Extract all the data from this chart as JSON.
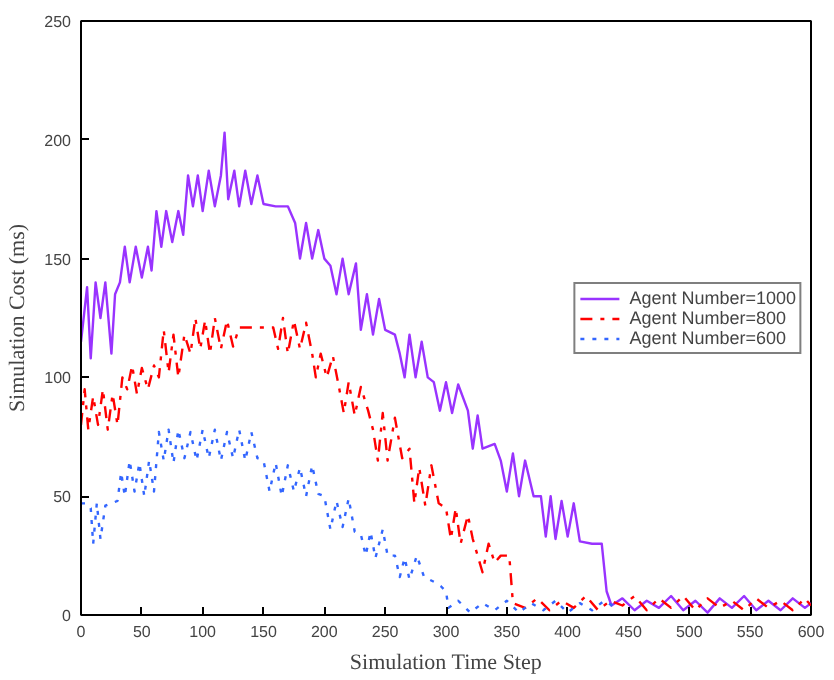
{
  "chart_data": {
    "type": "line",
    "xlabel": "Simulation Time Step",
    "ylabel": "Simulation Cost (ms)",
    "xlim": [
      0,
      600
    ],
    "ylim": [
      0,
      250
    ],
    "xticks": [
      0,
      50,
      100,
      150,
      200,
      250,
      300,
      350,
      400,
      450,
      500,
      550,
      600
    ],
    "yticks": [
      0,
      50,
      100,
      150,
      200,
      250
    ],
    "grid": false,
    "legend": "right",
    "marker": "none",
    "series": [
      {
        "name": "Agent Number=1000",
        "color": "#9933ff",
        "line_style": "solid",
        "x": [
          0,
          5,
          8,
          12,
          16,
          20,
          25,
          28,
          32,
          36,
          40,
          45,
          50,
          55,
          58,
          62,
          66,
          70,
          75,
          80,
          84,
          88,
          92,
          96,
          100,
          105,
          110,
          115,
          118,
          121,
          126,
          130,
          135,
          140,
          145,
          150,
          160,
          170,
          176,
          180,
          185,
          190,
          195,
          200,
          205,
          210,
          215,
          220,
          226,
          230,
          235,
          240,
          245,
          250,
          258,
          262,
          266,
          270,
          275,
          280,
          285,
          290,
          295,
          300,
          305,
          310,
          318,
          322,
          326,
          330,
          340,
          345,
          350,
          355,
          360,
          365,
          372,
          378,
          382,
          386,
          390,
          395,
          400,
          405,
          410,
          420,
          428,
          432,
          436,
          445,
          455,
          465,
          475,
          485,
          495,
          505,
          515,
          525,
          535,
          545,
          555,
          565,
          575,
          585,
          595,
          600
        ],
        "values": [
          115,
          138,
          108,
          140,
          125,
          140,
          110,
          135,
          140,
          155,
          140,
          155,
          142,
          155,
          145,
          170,
          155,
          170,
          157,
          170,
          160,
          185,
          172,
          185,
          170,
          187,
          172,
          185,
          203,
          175,
          187,
          172,
          187,
          173,
          185,
          173,
          172,
          172,
          165,
          150,
          165,
          150,
          162,
          150,
          147,
          135,
          150,
          135,
          148,
          120,
          135,
          118,
          133,
          120,
          118,
          110,
          100,
          118,
          100,
          115,
          100,
          98,
          86,
          98,
          85,
          97,
          86,
          70,
          84,
          70,
          72,
          65,
          52,
          68,
          50,
          65,
          50,
          50,
          33,
          50,
          32,
          48,
          33,
          47,
          31,
          30,
          30,
          10,
          4,
          7,
          2,
          6,
          3,
          8,
          2,
          6,
          1,
          7,
          3,
          8,
          2,
          6,
          2,
          7,
          3,
          5
        ]
      },
      {
        "name": "Agent Number=800",
        "color": "#ff0000",
        "line_style": "dashdot",
        "x": [
          0,
          3,
          6,
          10,
          14,
          18,
          22,
          26,
          30,
          34,
          38,
          42,
          46,
          50,
          55,
          60,
          64,
          68,
          72,
          76,
          80,
          85,
          90,
          94,
          98,
          102,
          106,
          110,
          115,
          120,
          125,
          130,
          140,
          150,
          158,
          162,
          166,
          170,
          175,
          180,
          185,
          190,
          193,
          197,
          202,
          207,
          212,
          216,
          220,
          225,
          230,
          236,
          240,
          244,
          248,
          252,
          258,
          264,
          270,
          274,
          278,
          283,
          288,
          294,
          300,
          304,
          308,
          312,
          318,
          322,
          326,
          330,
          335,
          340,
          345,
          352,
          355,
          365,
          375,
          385,
          395,
          405,
          415,
          425,
          435,
          445,
          455,
          465,
          475,
          485,
          495,
          505,
          515,
          525,
          535,
          545,
          555,
          565,
          575,
          585,
          595,
          600
        ],
        "values": [
          80,
          95,
          78,
          92,
          80,
          95,
          78,
          93,
          80,
          100,
          95,
          105,
          93,
          104,
          95,
          105,
          100,
          120,
          102,
          118,
          100,
          118,
          110,
          125,
          112,
          124,
          110,
          125,
          112,
          124,
          113,
          121,
          121,
          121,
          121,
          112,
          125,
          110,
          124,
          112,
          123,
          110,
          100,
          110,
          100,
          109,
          96,
          85,
          98,
          84,
          96,
          86,
          78,
          65,
          85,
          65,
          83,
          66,
          70,
          47,
          62,
          46,
          63,
          47,
          45,
          32,
          45,
          30,
          42,
          32,
          25,
          18,
          30,
          22,
          25,
          25,
          5,
          3,
          7,
          2,
          6,
          3,
          8,
          2,
          6,
          4,
          8,
          2,
          7,
          3,
          8,
          2,
          7,
          3,
          6,
          2,
          7,
          3,
          6,
          2,
          7,
          4
        ]
      },
      {
        "name": "Agent Number=600",
        "color": "#3366ff",
        "line_style": "dotted",
        "x": [
          0,
          5,
          8,
          10,
          13,
          16,
          20,
          25,
          30,
          33,
          36,
          40,
          44,
          48,
          52,
          56,
          60,
          64,
          68,
          72,
          76,
          80,
          85,
          90,
          95,
          100,
          105,
          110,
          115,
          120,
          125,
          130,
          135,
          140,
          145,
          150,
          155,
          160,
          165,
          170,
          175,
          180,
          185,
          190,
          195,
          200,
          205,
          210,
          215,
          220,
          225,
          230,
          234,
          238,
          242,
          248,
          252,
          258,
          262,
          266,
          270,
          276,
          282,
          290,
          296,
          300,
          302,
          310,
          320,
          330,
          340,
          350,
          360,
          370,
          380,
          390,
          400,
          410,
          420,
          430,
          440
        ],
        "values": [
          47,
          47,
          45,
          30,
          47,
          32,
          46,
          47,
          48,
          60,
          50,
          65,
          52,
          64,
          50,
          65,
          52,
          77,
          65,
          78,
          64,
          78,
          66,
          77,
          65,
          78,
          66,
          78,
          65,
          77,
          66,
          78,
          65,
          77,
          66,
          65,
          52,
          64,
          50,
          63,
          52,
          62,
          50,
          63,
          51,
          50,
          36,
          48,
          37,
          49,
          35,
          34,
          25,
          35,
          24,
          36,
          25,
          25,
          16,
          24,
          15,
          25,
          16,
          14,
          12,
          10,
          3,
          6,
          1,
          5,
          2,
          6,
          1,
          5,
          2,
          6,
          1,
          5,
          2,
          6,
          3
        ]
      }
    ]
  }
}
